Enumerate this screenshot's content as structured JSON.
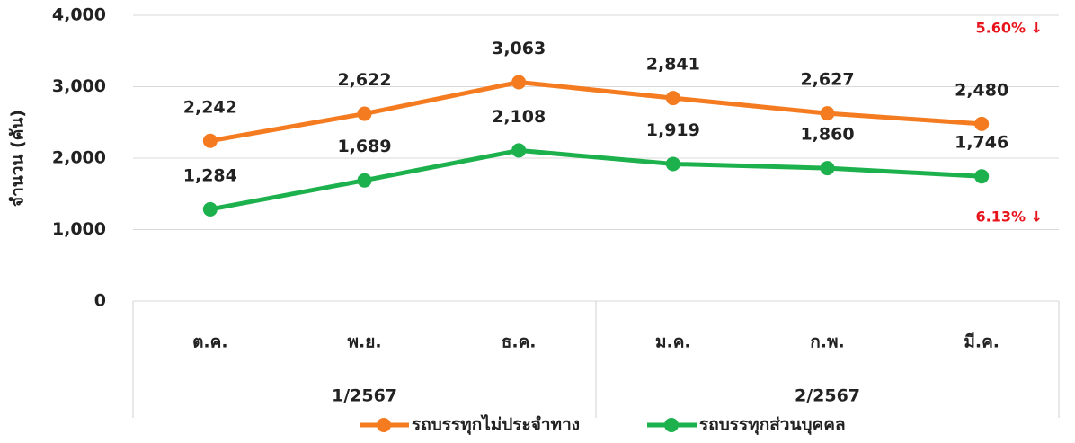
{
  "chart_data": {
    "type": "line",
    "y_label": "จำนวน (คัน)",
    "categories": [
      "ต.ค.",
      "พ.ย.",
      "ธ.ค.",
      "ม.ค.",
      "ก.พ.",
      "มี.ค."
    ],
    "category_groups": [
      {
        "name": "1/2567",
        "count": 3
      },
      {
        "name": "2/2567",
        "count": 3
      }
    ],
    "series": [
      {
        "name": "รถบรรทุกไม่ประจำทาง",
        "color": "#f47b20",
        "values": [
          2242,
          2622,
          3063,
          2841,
          2627,
          2480
        ],
        "value_labels": [
          "2,242",
          "2,622",
          "3,063",
          "2,841",
          "2,627",
          "2,480"
        ]
      },
      {
        "name": "รถบรรทุกส่วนบุคคล",
        "color": "#1db14e",
        "values": [
          1284,
          1689,
          2108,
          1919,
          1860,
          1746
        ],
        "value_labels": [
          "1,284",
          "1,689",
          "2,108",
          "1,919",
          "1,860",
          "1,746"
        ]
      }
    ],
    "ylim": [
      0,
      4000
    ],
    "yticks": [
      0,
      {
        "value": 1000,
        "label": "1,000"
      },
      {
        "value": 2000,
        "label": "2,000"
      },
      {
        "value": 3000,
        "label": "3,000"
      },
      {
        "value": 4000,
        "label": "4,000"
      }
    ],
    "grid": true,
    "legend": "bottom",
    "annotations": [
      {
        "text": "5.60% ↓",
        "color": "#e8141c",
        "series": 0
      },
      {
        "text": "6.13% ↓",
        "color": "#e8141c",
        "series": 1
      }
    ]
  }
}
